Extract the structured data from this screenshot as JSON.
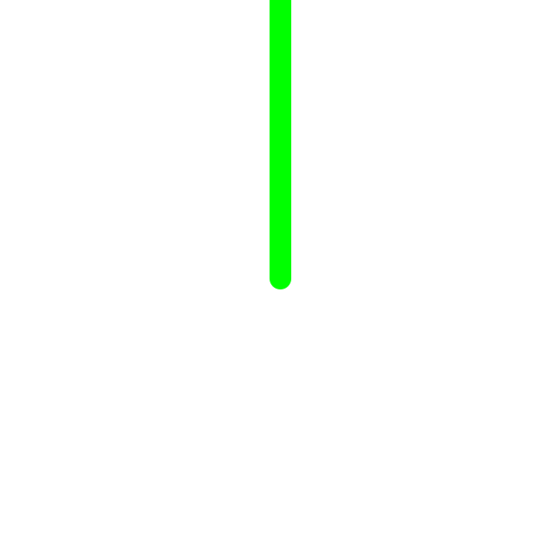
{
  "canvas": {
    "background": "#ffffff"
  },
  "stroke": {
    "color": "#00ff00",
    "glow_color": "#7dff7d",
    "orientation": "vertical",
    "cap": "round"
  }
}
